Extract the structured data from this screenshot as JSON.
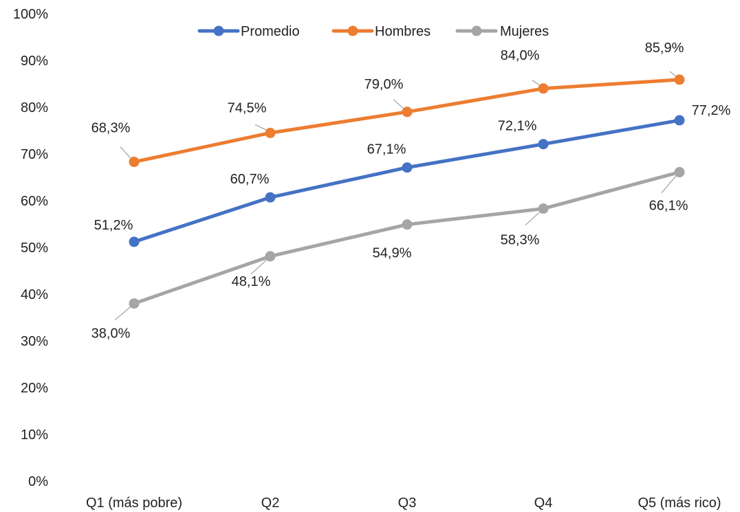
{
  "chart_data": {
    "type": "line",
    "categories": [
      "Q1 (más pobre)",
      "Q2",
      "Q3",
      "Q4",
      "Q5 (más rico)"
    ],
    "ylim": [
      0,
      100
    ],
    "yticks": [
      "0%",
      "10%",
      "20%",
      "30%",
      "40%",
      "50%",
      "60%",
      "70%",
      "80%",
      "90%",
      "100%"
    ],
    "grid": false,
    "legend_position": "top",
    "series": [
      {
        "name": "Promedio",
        "color": "#4472C4",
        "values": [
          51.2,
          60.7,
          67.1,
          72.1,
          77.2
        ],
        "labels": [
          "51,2%",
          "60,7%",
          "67,1%",
          "72,1%",
          "77,2%"
        ]
      },
      {
        "name": "Hombres",
        "color": "#ED7D31",
        "values": [
          68.3,
          74.5,
          79.0,
          84.0,
          85.9
        ],
        "labels": [
          "68,3%",
          "74,5%",
          "79,0%",
          "84,0%",
          "85,9%"
        ]
      },
      {
        "name": "Mujeres",
        "color": "#A5A5A5",
        "values": [
          38.0,
          48.1,
          54.9,
          58.3,
          66.1
        ],
        "labels": [
          "38,0%",
          "48,1%",
          "54,9%",
          "58,3%",
          "66,1%"
        ]
      }
    ]
  }
}
